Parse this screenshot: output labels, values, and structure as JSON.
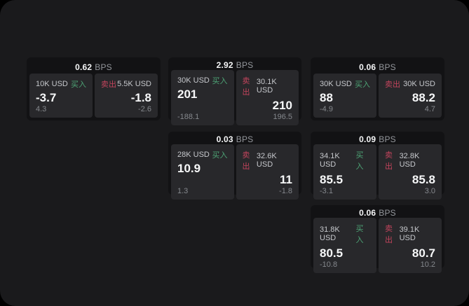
{
  "labels": {
    "bps_unit": "BPS",
    "buy": "买入",
    "sell": "卖出"
  },
  "colors": {
    "page_background": "#1a1a1c",
    "card_background": "#121214",
    "panel_background": "#28282b",
    "buy_green": "#4da375",
    "sell_red": "#c2445c",
    "value_white": "#f7f8f9",
    "label_gray": "#c6c8cc",
    "sub_gray": "#85888d"
  },
  "cards": [
    {
      "bps": "0.62",
      "buy": {
        "amount": "10K USD",
        "value": "-3.7",
        "sub": "4.3"
      },
      "sell": {
        "amount": "5.5K USD",
        "value": "-1.8",
        "sub": "-2.6"
      }
    },
    {
      "bps": "2.92",
      "buy": {
        "amount": "30K USD",
        "value": "201",
        "sub": "-188.1"
      },
      "sell": {
        "amount": "30.1K USD",
        "value": "210",
        "sub": "196.5"
      }
    },
    {
      "bps": "0.06",
      "buy": {
        "amount": "30K USD",
        "value": "88",
        "sub": "-4.9"
      },
      "sell": {
        "amount": "30K USD",
        "value": "88.2",
        "sub": "4.7"
      }
    },
    {
      "bps": "0.03",
      "buy": {
        "amount": "28K USD",
        "value": "10.9",
        "sub": "1.3"
      },
      "sell": {
        "amount": "32.6K USD",
        "value": "11",
        "sub": "-1.8"
      }
    },
    {
      "bps": "0.09",
      "buy": {
        "amount": "34.1K USD",
        "value": "85.5",
        "sub": "-3.1"
      },
      "sell": {
        "amount": "32.8K USD",
        "value": "85.8",
        "sub": "3.0"
      }
    },
    {
      "bps": "0.06",
      "buy": {
        "amount": "31.8K USD",
        "value": "80.5",
        "sub": "-10.8"
      },
      "sell": {
        "amount": "39.1K USD",
        "value": "80.7",
        "sub": "10.2"
      }
    }
  ]
}
